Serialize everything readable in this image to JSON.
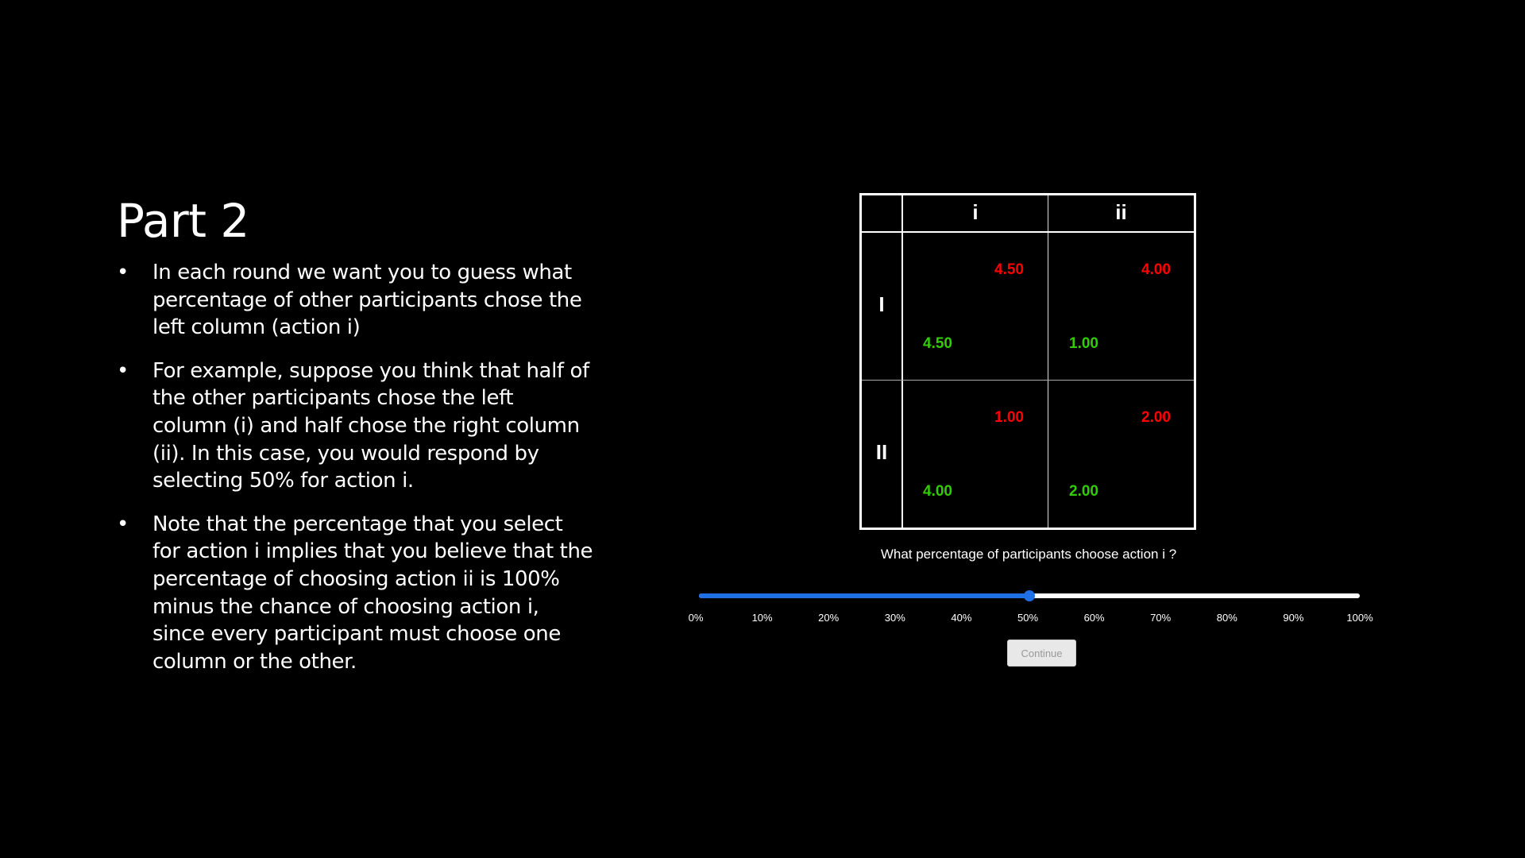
{
  "slide": {
    "title": "Part 2",
    "bullet_symbol": "•",
    "bullets": [
      "In each round we want you to guess what percentage of other participants chose the left column (action i)",
      "For example, suppose you think that half of the other participants chose the left column (i) and half chose the right column (ii).  In this case, you would respond by selecting 50% for action i.",
      "Note that the percentage that you select for action i implies that you believe that the percentage of choosing action ii is 100% minus the chance of choosing action i, since every participant must choose one column or the other."
    ]
  },
  "matrix": {
    "col_headers": [
      "i",
      "ii"
    ],
    "row_headers": [
      "I",
      "II"
    ],
    "cells": [
      [
        {
          "red": "4.50",
          "green": "4.50"
        },
        {
          "red": "4.00",
          "green": "1.00"
        }
      ],
      [
        {
          "red": "1.00",
          "green": "4.00"
        },
        {
          "red": "2.00",
          "green": "2.00"
        }
      ]
    ],
    "colors": {
      "red": "#ff0000",
      "green": "#33cc00"
    }
  },
  "question": "What percentage of participants choose action i ?",
  "slider": {
    "value_percent": 50,
    "fill_color": "#1f6fe5",
    "tick_labels": [
      "0%",
      "10%",
      "20%",
      "30%",
      "40%",
      "50%",
      "60%",
      "70%",
      "80%",
      "90%",
      "100%"
    ]
  },
  "continue_label": "Continue"
}
